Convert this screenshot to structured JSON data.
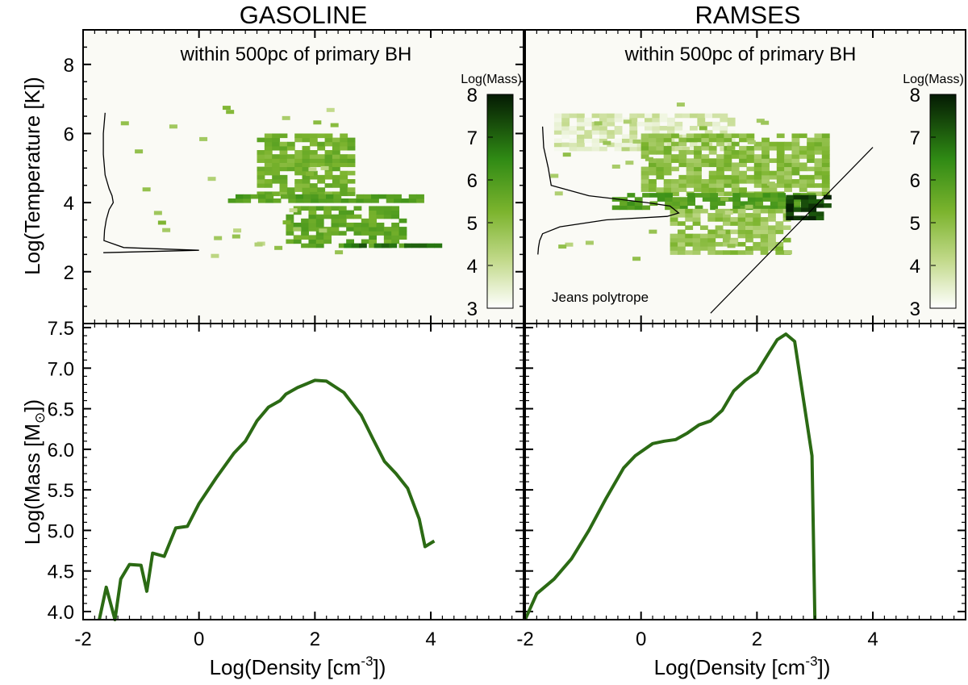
{
  "chart_data": [
    {
      "type": "heatmap",
      "title": "GASOLINE",
      "subtitle": "within 500pc of primary BH",
      "xlabel": "",
      "ylabel": "Log(Temperature [K])",
      "xlim": [
        -2,
        5.6
      ],
      "ylim": [
        0.5,
        9
      ],
      "y_ticks": [
        "2",
        "4",
        "6",
        "8"
      ],
      "y_tick_values": [
        2,
        4,
        6,
        8
      ],
      "colorbar": {
        "label": "Log(Mass)",
        "ticks": [
          "3",
          "4",
          "5",
          "6",
          "7",
          "8"
        ],
        "range": [
          3,
          8
        ]
      },
      "regions": [
        {
          "x": [
            1.0,
            2.6
          ],
          "y": [
            4.2,
            6.0
          ],
          "level": 5.2
        },
        {
          "x": [
            0.5,
            3.8
          ],
          "y": [
            4.0,
            4.2
          ],
          "level": 5.8
        },
        {
          "x": [
            1.5,
            3.5
          ],
          "y": [
            2.7,
            3.9
          ],
          "level": 5.5
        },
        {
          "x": [
            2.5,
            4.1
          ],
          "y": [
            2.7,
            2.8
          ],
          "level": 7.0
        }
      ],
      "profile_curve": {
        "y": [
          6.6,
          6.0,
          5.4,
          4.8,
          4.4,
          4.2,
          4.0,
          3.8,
          3.5,
          3.2,
          2.9,
          2.7,
          2.62,
          2.55
        ],
        "x": [
          -1.62,
          -1.65,
          -1.65,
          -1.62,
          -1.55,
          -1.5,
          -1.48,
          -1.55,
          -1.6,
          -1.63,
          -1.64,
          -1.3,
          0.0,
          -1.65
        ]
      }
    },
    {
      "type": "heatmap",
      "title": "RAMSES",
      "subtitle": "within 500pc of primary BH",
      "xlim": [
        -2,
        5.6
      ],
      "ylim": [
        0.5,
        9
      ],
      "colorbar": {
        "label": "Log(Mass)",
        "ticks": [
          "3",
          "4",
          "5",
          "6",
          "7",
          "8"
        ],
        "range": [
          3,
          8
        ]
      },
      "regions": [
        {
          "x": [
            -1.5,
            1.5
          ],
          "y": [
            5.5,
            6.5
          ],
          "level": 3.6
        },
        {
          "x": [
            0.0,
            3.2
          ],
          "y": [
            4.2,
            6.0
          ],
          "level": 4.8
        },
        {
          "x": [
            -0.5,
            3.0
          ],
          "y": [
            3.8,
            4.2
          ],
          "level": 5.8
        },
        {
          "x": [
            0.5,
            2.5
          ],
          "y": [
            2.5,
            3.8
          ],
          "level": 4.6
        },
        {
          "x": [
            2.5,
            3.2
          ],
          "y": [
            3.5,
            4.2
          ],
          "level": 7.5
        }
      ],
      "annotation": "Jeans polytrope",
      "polytrope_line": {
        "x": [
          1.2,
          4.0
        ],
        "y": [
          0.8,
          5.6
        ]
      },
      "profile_curve": {
        "y": [
          6.2,
          5.6,
          5.0,
          4.5,
          4.2,
          4.0,
          3.9,
          3.7,
          3.6,
          3.5,
          3.3,
          3.1,
          2.9,
          2.7,
          2.5
        ],
        "x": [
          -1.7,
          -1.68,
          -1.6,
          -1.55,
          -0.9,
          0.1,
          0.5,
          0.65,
          0.45,
          -0.6,
          -1.4,
          -1.7,
          -1.75,
          -1.77,
          -1.78
        ]
      }
    },
    {
      "type": "line",
      "xlabel": "Log(Density [cm",
      "xlabel_sup": "-3",
      "xlabel_end": "])",
      "ylabel": "Log(Mass [M",
      "ylabel_sub": "⊙",
      "ylabel_end": "])",
      "xlim": [
        -2,
        5.6
      ],
      "ylim": [
        3.9,
        7.55
      ],
      "x_ticks": [
        "-2",
        "0",
        "2",
        "4"
      ],
      "x_tick_values": [
        -2,
        0,
        2,
        4
      ],
      "y_ticks": [
        "4.0",
        "4.5",
        "5.0",
        "5.5",
        "6.0",
        "6.5",
        "7.0",
        "7.5"
      ],
      "y_tick_values": [
        4.0,
        4.5,
        5.0,
        5.5,
        6.0,
        6.5,
        7.0,
        7.5
      ],
      "series": [
        {
          "name": "GASOLINE",
          "color": "#2b6a14",
          "x": [
            -1.72,
            -1.6,
            -1.45,
            -1.35,
            -1.2,
            -1.0,
            -0.9,
            -0.8,
            -0.6,
            -0.4,
            -0.2,
            0.0,
            0.3,
            0.6,
            0.8,
            1.0,
            1.2,
            1.4,
            1.5,
            1.7,
            2.0,
            2.2,
            2.5,
            2.8,
            3.0,
            3.2,
            3.4,
            3.6,
            3.8,
            3.9,
            4.06
          ],
          "y": [
            3.9,
            4.3,
            3.9,
            4.4,
            4.58,
            4.57,
            4.25,
            4.72,
            4.68,
            5.03,
            5.05,
            5.33,
            5.65,
            5.95,
            6.1,
            6.35,
            6.52,
            6.6,
            6.68,
            6.76,
            6.85,
            6.84,
            6.7,
            6.42,
            6.13,
            5.85,
            5.7,
            5.52,
            5.14,
            4.8,
            4.87
          ]
        },
        {
          "name": "RAMSES",
          "color": "#2b6a14",
          "x": [
            -2.0,
            -1.8,
            -1.5,
            -1.2,
            -0.9,
            -0.6,
            -0.3,
            -0.1,
            0.2,
            0.4,
            0.6,
            0.8,
            1.0,
            1.2,
            1.4,
            1.6,
            1.8,
            2.0,
            2.2,
            2.35,
            2.5,
            2.65,
            2.95,
            3.0
          ],
          "y": [
            3.9,
            4.22,
            4.4,
            4.65,
            5.0,
            5.4,
            5.77,
            5.92,
            6.07,
            6.1,
            6.12,
            6.2,
            6.3,
            6.35,
            6.48,
            6.72,
            6.85,
            6.95,
            7.18,
            7.35,
            7.42,
            7.33,
            5.92,
            3.9
          ]
        }
      ]
    }
  ]
}
